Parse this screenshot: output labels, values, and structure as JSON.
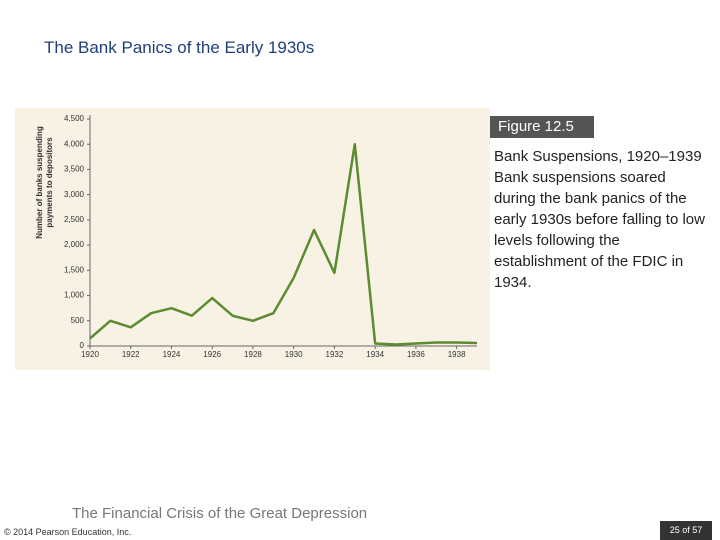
{
  "slide": {
    "title": "The Bank Panics of the Early 1930s",
    "figure_label": "Figure 12.5",
    "caption": "Bank suspensions soared during the bank panics of the early 1930s before falling to low levels following the establishment of the FDIC in 1934.",
    "footer": "The Financial Crisis of the Great Depression",
    "copyright": "© 2014 Pearson Education, Inc.",
    "page": "25 of 57"
  },
  "chart_data": {
    "type": "line",
    "title": "Bank Suspensions, 1920–1939",
    "y_label": [
      "Number of banks suspending",
      "payments to depositors"
    ],
    "x": [
      1920,
      1921,
      1922,
      1923,
      1924,
      1925,
      1926,
      1927,
      1928,
      1929,
      1930,
      1931,
      1932,
      1933,
      1934,
      1935,
      1936,
      1937,
      1938,
      1939
    ],
    "series": [
      {
        "color": "#5b8c32",
        "values": [
          150,
          500,
          370,
          650,
          750,
          600,
          950,
          600,
          500,
          650,
          1350,
          2300,
          1450,
          4000,
          50,
          30,
          50,
          70,
          70,
          60
        ]
      }
    ],
    "xlim": [
      1920,
      1939
    ],
    "xticks": [
      1920,
      1922,
      1924,
      1926,
      1928,
      1930,
      1932,
      1934,
      1936,
      1938
    ],
    "ylim": [
      0,
      4500
    ],
    "yticks": [
      0,
      500,
      {
        "value": 1000,
        "label": "1,000"
      },
      {
        "value": 1500,
        "label": "1,500"
      },
      {
        "value": 2000,
        "label": "2,000"
      },
      {
        "value": 2500,
        "label": "2,500"
      },
      {
        "value": 3000,
        "label": "3,000"
      },
      {
        "value": 3500,
        "label": "3,500"
      },
      {
        "value": 4000,
        "label": "4,000"
      },
      {
        "value": 4500,
        "label": "4,500"
      }
    ]
  }
}
